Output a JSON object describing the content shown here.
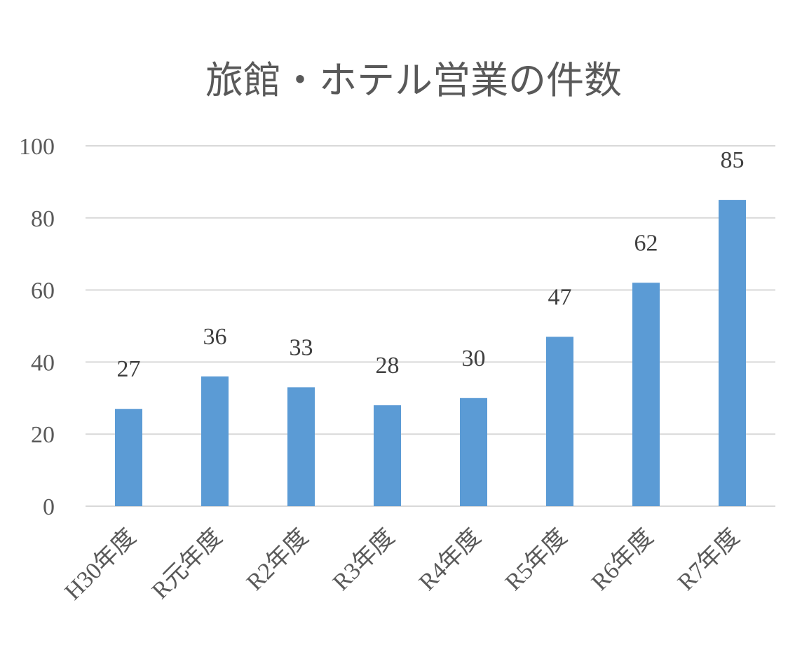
{
  "chart_data": {
    "type": "bar",
    "title": "旅館・ホテル営業の件数",
    "categories": [
      "H30年度",
      "R元年度",
      "R2年度",
      "R3年度",
      "R4年度",
      "R5年度",
      "R6年度",
      "R7年度"
    ],
    "values": [
      27,
      36,
      33,
      28,
      30,
      47,
      62,
      85
    ],
    "ylim": [
      0,
      100
    ],
    "yticks": [
      0,
      20,
      40,
      60,
      80,
      100
    ],
    "grid": true,
    "data_labels": true,
    "colors": {
      "bar": "#5b9bd5",
      "grid": "#d9d9d9",
      "text": "#595959"
    }
  }
}
